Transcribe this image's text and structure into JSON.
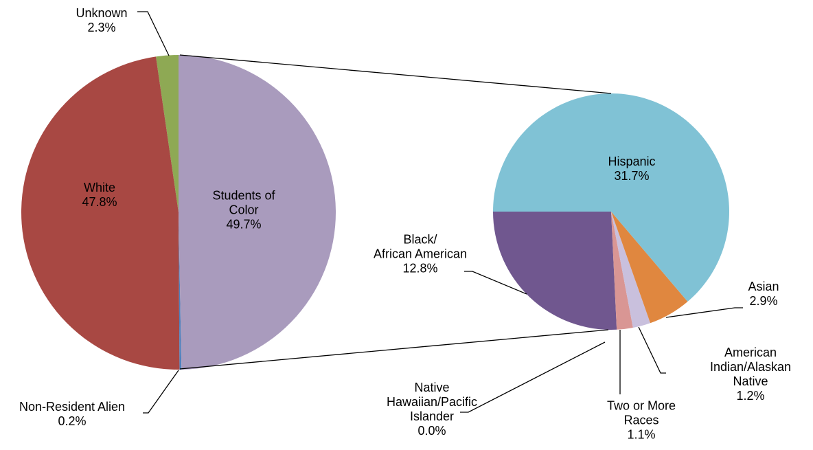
{
  "chart_data": [
    {
      "type": "pie",
      "categories": [
        "Students of\nColor",
        "Non-Resident Alien",
        "White",
        "Unknown"
      ],
      "values": [
        49.7,
        0.2,
        47.8,
        2.3
      ],
      "value_labels": [
        "49.7%",
        "0.2%",
        "47.8%",
        "2.3%"
      ],
      "colors": [
        "#a99bbd",
        "#4f81bd",
        "#a84843",
        "#8ea954"
      ]
    },
    {
      "type": "pie",
      "categories": [
        "Hispanic",
        "Asian",
        "American\nIndian/Alaskan\nNative",
        "Two or More\nRaces",
        "Native\nHawaiian/Pacific\nIslander",
        "Black/\nAfrican American"
      ],
      "values": [
        31.7,
        2.9,
        1.2,
        1.1,
        0.0,
        12.8
      ],
      "value_labels": [
        "31.7%",
        "2.9%",
        "1.2%",
        "1.1%",
        "0.0%",
        "12.8%"
      ],
      "colors": [
        "#80c2d5",
        "#e0873f",
        "#c9c0dd",
        "#d99694",
        "#8064a2",
        "#70578f"
      ]
    }
  ]
}
